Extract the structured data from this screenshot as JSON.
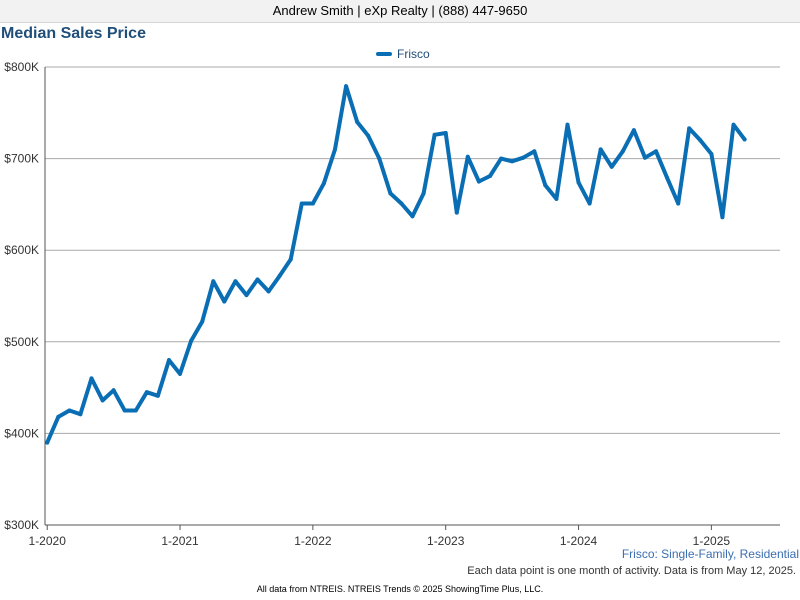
{
  "header": {
    "agent_line": "Andrew Smith | eXp Realty | (888) 447-9650"
  },
  "chart_data": {
    "type": "line",
    "title": "Median Sales Price",
    "xlabel": "",
    "ylabel": "",
    "legend_position": "top-center",
    "grid": true,
    "y_ticks": [
      "$300K",
      "$400K",
      "$500K",
      "$600K",
      "$700K",
      "$800K"
    ],
    "y_tick_values": [
      300000,
      400000,
      500000,
      600000,
      700000,
      800000
    ],
    "ylim": [
      300000,
      800000
    ],
    "x_ticks": [
      "1-2020",
      "1-2021",
      "1-2022",
      "1-2023",
      "1-2024",
      "1-2025"
    ],
    "x_tick_months": [
      0,
      12,
      24,
      36,
      48,
      60
    ],
    "xlim_months": [
      -0.2,
      66.2
    ],
    "series": [
      {
        "name": "Frisco",
        "color": "#0a6eb4",
        "values": [
          390000,
          418000,
          425000,
          421000,
          460000,
          436000,
          447000,
          425000,
          425000,
          445000,
          441000,
          480000,
          465000,
          501000,
          522000,
          566000,
          544000,
          566000,
          551000,
          568000,
          555000,
          572000,
          590000,
          651000,
          651000,
          673000,
          710000,
          779000,
          740000,
          725000,
          700000,
          662000,
          651000,
          637000,
          662000,
          726000,
          728000,
          641000,
          702000,
          675000,
          681000,
          700000,
          697000,
          701000,
          708000,
          671000,
          656000,
          737000,
          674000,
          651000,
          710000,
          691000,
          708000,
          731000,
          701000,
          708000,
          679000,
          651000,
          733000,
          720000,
          705000,
          636000,
          737000,
          721000
        ]
      }
    ]
  },
  "caption": "Frisco: Single-Family, Residential",
  "note": "Each data point is one month of activity. Data is from May 12, 2025.",
  "footer": "All data from NTREIS. NTREIS Trends © 2025 ShowingTime Plus, LLC."
}
